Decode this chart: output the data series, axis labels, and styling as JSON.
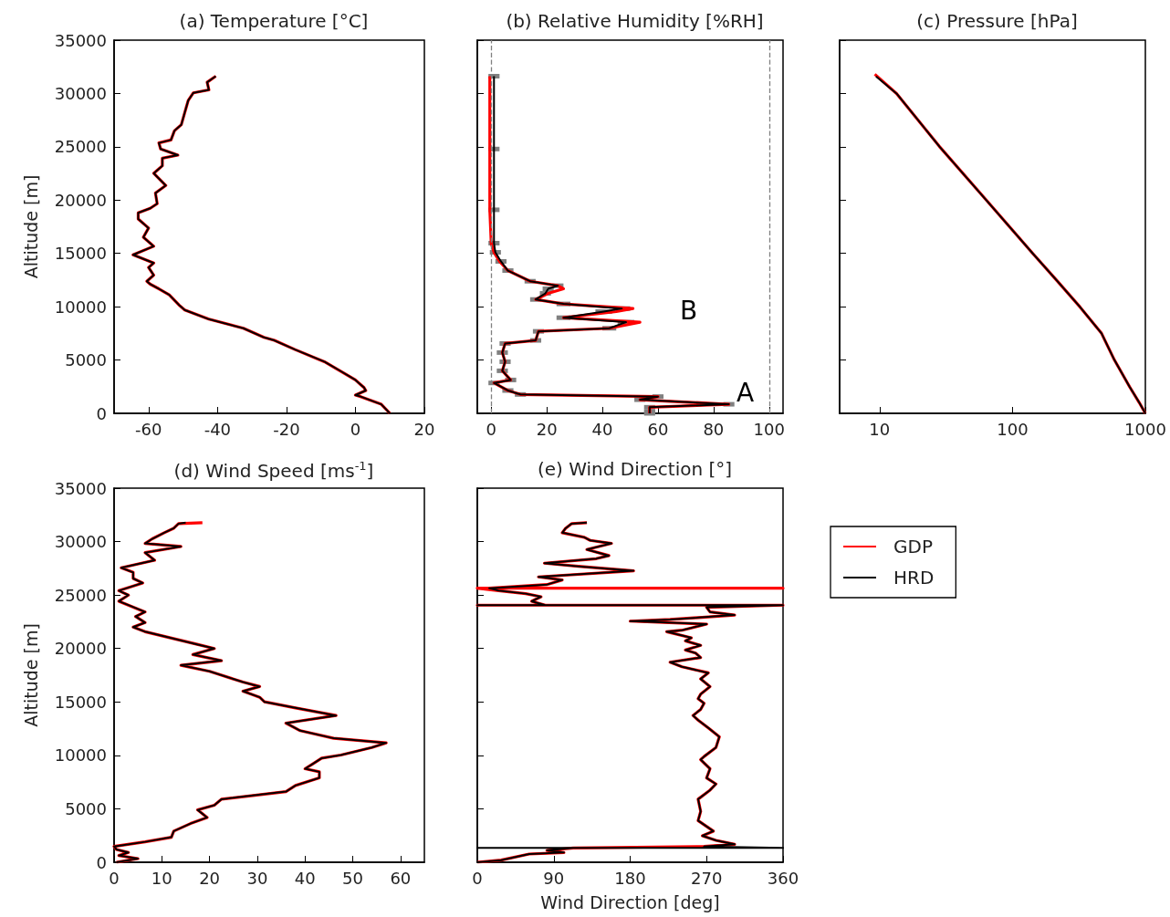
{
  "chart_data": [
    {
      "type": "line",
      "title": "(a) Temperature [°C]",
      "ylabel": "Altitude [m]",
      "xlim": [
        -70,
        20
      ],
      "xticks": [
        -60,
        -40,
        -20,
        0,
        20
      ],
      "ylim": [
        0,
        35000
      ],
      "yticks": [
        0,
        5000,
        10000,
        15000,
        20000,
        25000,
        30000,
        35000
      ],
      "marker": "none",
      "series": [
        {
          "color": "#ff0000",
          "x": [
            10,
            7.5,
            1.5,
            0,
            3,
            2.5,
            1.5,
            0,
            -4.5,
            -9,
            -17.5,
            -23.5,
            -26.5,
            -32.5,
            -42.5,
            -49.5,
            -51,
            -54,
            -57,
            -59.5,
            -60.5,
            -58.5,
            -60,
            -58.5,
            -64.5,
            -58.5,
            -61.5,
            -60,
            -63,
            -63,
            -59.5,
            -57.5,
            -58,
            -55,
            -58.5,
            -56,
            -56,
            -51.5,
            -56.5,
            -57,
            -53.5,
            -52.5,
            -50.5,
            -49.5,
            -49,
            -48.5,
            -47,
            -42.5,
            -43,
            -40.5
          ],
          "values": [
            0,
            850,
            1570,
            1710,
            2140,
            2420,
            2700,
            3130,
            4000,
            4840,
            5980,
            6840,
            7120,
            7980,
            8830,
            9690,
            10110,
            11110,
            11680,
            12110,
            12390,
            12960,
            13680,
            14100,
            14870,
            15670,
            16520,
            17380,
            18230,
            18800,
            19230,
            19660,
            20660,
            21370,
            22510,
            23220,
            23930,
            24220,
            24790,
            25360,
            25640,
            26500,
            27070,
            28210,
            28770,
            29340,
            30060,
            30340,
            31050,
            31620
          ]
        },
        {
          "color": "#000000",
          "x": [
            10,
            7.5,
            1.5,
            0,
            3,
            2.5,
            1.5,
            0,
            -4.5,
            -9,
            -17.5,
            -23.5,
            -26.5,
            -32.5,
            -42.5,
            -49.5,
            -51,
            -54,
            -57,
            -59.5,
            -60.5,
            -58.5,
            -60,
            -58.5,
            -64.5,
            -58.5,
            -61.5,
            -60,
            -63,
            -63,
            -59.5,
            -57.5,
            -58,
            -55,
            -58.5,
            -56,
            -56,
            -51.5,
            -56.5,
            -57,
            -53.5,
            -52.5,
            -50.5,
            -49.5,
            -49,
            -48.5,
            -47,
            -42.5,
            -43,
            -40.5
          ],
          "values": [
            0,
            850,
            1570,
            1710,
            2140,
            2420,
            2700,
            3130,
            4000,
            4840,
            5980,
            6840,
            7120,
            7980,
            8830,
            9690,
            10110,
            11110,
            11680,
            12110,
            12390,
            12960,
            13680,
            14100,
            14870,
            15670,
            16520,
            17380,
            18230,
            18800,
            19230,
            19660,
            20660,
            21370,
            22510,
            23220,
            23930,
            24220,
            24790,
            25360,
            25640,
            26500,
            27070,
            28210,
            28770,
            29340,
            30060,
            30340,
            31050,
            31620
          ]
        }
      ]
    },
    {
      "type": "line",
      "title": "(b) Relative Humidity [%RH]",
      "xlim": [
        -5,
        105
      ],
      "xticks": [
        0,
        20,
        40,
        60,
        80,
        100
      ],
      "ylim": [
        0,
        35000
      ],
      "yticks": [
        0,
        5000,
        10000,
        15000,
        20000,
        25000,
        30000,
        35000
      ],
      "tick_labels": "x",
      "marker": "none",
      "ref_lines": [
        {
          "axis": "x",
          "value": 0,
          "color": "#808080",
          "line_style": "dashed"
        },
        {
          "axis": "x",
          "value": 100,
          "color": "#808080",
          "line_style": "dashed"
        }
      ],
      "annotations": [
        "A",
        "B"
      ],
      "series": [
        {
          "color": "#ff0000",
          "x": [
            57,
            57,
            57,
            85.5,
            53.5,
            60,
            10.5,
            6,
            1,
            7,
            4,
            5,
            4,
            5,
            16,
            17,
            42.5,
            53.5,
            26,
            45,
            51,
            26,
            16,
            20.5,
            26,
            24,
            14,
            6,
            3,
            1,
            0,
            -0.5,
            -0.5,
            -0.5
          ],
          "values": [
            0,
            140,
            570,
            850,
            1280,
            1570,
            1770,
            2140,
            2850,
            3130,
            3990,
            4840,
            5700,
            6550,
            6840,
            7690,
            7980,
            8550,
            8970,
            9540,
            9830,
            10260,
            10680,
            11250,
            11680,
            11970,
            12390,
            13390,
            14250,
            15100,
            15960,
            19090,
            24790,
            31620
          ]
        },
        {
          "color": "#000000",
          "x": [
            57,
            57,
            57,
            85.5,
            53.5,
            60,
            10.5,
            6,
            1,
            7,
            4,
            5,
            4,
            5,
            16,
            17,
            42.5,
            48.5,
            26,
            40.5,
            47,
            26,
            16,
            19.5,
            20.5,
            24,
            14,
            6,
            3.5,
            1.5,
            1,
            1,
            1,
            1
          ],
          "values": [
            0,
            140,
            570,
            850,
            1280,
            1570,
            1770,
            2140,
            2850,
            3130,
            3990,
            4840,
            5700,
            6550,
            6840,
            7690,
            7980,
            8550,
            8970,
            9540,
            9830,
            10260,
            10680,
            11250,
            11680,
            11970,
            12390,
            13390,
            14250,
            15100,
            15960,
            19090,
            24790,
            31620
          ],
          "xerrors": [
            2,
            2,
            2,
            2,
            2,
            2,
            2,
            2,
            2,
            2,
            2,
            2,
            2,
            2,
            2,
            2,
            2.5,
            3,
            2.5,
            3,
            3,
            2.5,
            2,
            2,
            2,
            2,
            2,
            2,
            2,
            2,
            2,
            2,
            2,
            2
          ]
        }
      ]
    },
    {
      "type": "line",
      "title": "(c) Pressure [hPa]",
      "log": "x",
      "xlim": [
        5,
        1000
      ],
      "xticks": [
        10,
        100,
        1000
      ],
      "ylim": [
        0,
        35000
      ],
      "yticks": [
        0,
        5000,
        10000,
        15000,
        20000,
        25000,
        30000,
        35000
      ],
      "tick_labels": "x",
      "marker": "none",
      "series": [
        {
          "color": "#ff0000",
          "x": [
            1000,
            900,
            760,
            585,
            468,
            321,
            214,
            142,
            63.5,
            28.3,
            13.4,
            9.2
          ],
          "values": [
            0,
            1000,
            2500,
            5000,
            7500,
            10000,
            12500,
            15000,
            20000,
            25000,
            30000,
            31800
          ]
        },
        {
          "color": "#000000",
          "x": [
            1000,
            900,
            760,
            585,
            468,
            321,
            214,
            142,
            63.5,
            28.3,
            13.4,
            9.4
          ],
          "values": [
            0,
            1000,
            2500,
            5000,
            7500,
            10000,
            12500,
            15000,
            20000,
            25000,
            30000,
            31600
          ]
        }
      ]
    },
    {
      "type": "line",
      "title": "(d) Wind Speed [ms$^{-1}$]",
      "ylabel": "Altitude [m]",
      "xlim": [
        0,
        65
      ],
      "xticks": [
        0,
        10,
        20,
        30,
        40,
        50,
        60
      ],
      "ylim": [
        0,
        35000
      ],
      "yticks": [
        0,
        5000,
        10000,
        15000,
        20000,
        25000,
        30000,
        35000
      ],
      "marker": "none",
      "series": [
        {
          "color": "#ff0000",
          "x": [
            0.5,
            5,
            1,
            3,
            0.5,
            0,
            6.5,
            12,
            12.5,
            16,
            19.5,
            17.5,
            21,
            22.5,
            36,
            38,
            43,
            43,
            40,
            41.5,
            43.5,
            47.5,
            54,
            57,
            46,
            39,
            36,
            46.5,
            38,
            31.5,
            30.5,
            27,
            30.5,
            27,
            20,
            14,
            22.5,
            16.5,
            21,
            17,
            6.5,
            4,
            6.5,
            4.5,
            6.5,
            1,
            3,
            1,
            6,
            4,
            4,
            1.5,
            8.5,
            6.5,
            14,
            6.5,
            8,
            10.5,
            12.5,
            13.5,
            18.5
          ],
          "values": [
            0,
            340,
            630,
            910,
            1200,
            1480,
            1910,
            2340,
            2910,
            3620,
            4190,
            4900,
            5330,
            5900,
            6610,
            7180,
            7890,
            8460,
            8750,
            9170,
            9740,
            10030,
            10740,
            11170,
            11600,
            12310,
            13020,
            13730,
            14440,
            15010,
            15440,
            16010,
            16440,
            16860,
            17860,
            18430,
            18860,
            19430,
            20000,
            20430,
            21570,
            22000,
            22420,
            22990,
            23420,
            24420,
            24990,
            25410,
            26130,
            26550,
            27120,
            27550,
            28260,
            28970,
            29540,
            29830,
            30260,
            30830,
            31250,
            31680,
            31770
          ]
        },
        {
          "color": "#000000",
          "x": [
            0.5,
            5,
            1,
            3,
            0.5,
            0,
            6.5,
            12,
            12.5,
            16,
            19.5,
            17.5,
            21,
            22.5,
            36,
            38,
            43,
            43,
            40,
            41.5,
            43.5,
            47.5,
            54,
            57,
            46,
            39,
            36,
            46.5,
            38,
            31.5,
            30.5,
            27,
            30.5,
            27,
            20,
            14,
            22.5,
            16.5,
            21,
            17,
            6.5,
            4,
            6.5,
            4.5,
            6.5,
            1,
            3,
            1,
            6,
            4,
            4,
            1.5,
            8.5,
            6.5,
            14,
            6.5,
            8,
            10.5,
            12.5,
            13.5,
            15
          ],
          "values": [
            0,
            340,
            630,
            910,
            1200,
            1480,
            1910,
            2340,
            2910,
            3620,
            4190,
            4900,
            5330,
            5900,
            6610,
            7180,
            7890,
            8460,
            8750,
            9170,
            9740,
            10030,
            10740,
            11170,
            11600,
            12310,
            13020,
            13730,
            14440,
            15010,
            15440,
            16010,
            16440,
            16860,
            17860,
            18430,
            18860,
            19430,
            20000,
            20430,
            21570,
            22000,
            22420,
            22990,
            23420,
            24420,
            24990,
            25410,
            26130,
            26550,
            27120,
            27550,
            28260,
            28970,
            29540,
            29830,
            30260,
            30830,
            31250,
            31680,
            31770
          ]
        }
      ]
    },
    {
      "type": "line",
      "title": "(e) Wind Direction [°]",
      "xlabel": "Wind Direction [deg]",
      "xlim": [
        0,
        360
      ],
      "xticks": [
        0,
        90,
        180,
        270,
        360
      ],
      "ylim": [
        0,
        35000
      ],
      "yticks": [
        0,
        5000,
        10000,
        15000,
        20000,
        25000,
        30000,
        35000
      ],
      "tick_labels": "x",
      "marker": "none",
      "legend": "right",
      "series": [
        {
          "name": "GDP",
          "color": "#ff0000",
          "x": [
            0,
            28,
            61,
            102,
            82,
            113,
            267,
            303,
            281,
            265,
            278,
            260,
            263,
            260,
            274,
            281,
            270,
            274,
            263,
            267,
            281,
            285,
            274,
            260,
            254,
            263,
            267,
            260,
            263,
            274,
            263,
            272,
            241,
            227,
            263,
            257,
            245,
            263,
            245,
            252,
            223,
            241,
            270,
            180,
            227,
            303,
            274,
            270,
            360,
            0,
            80,
            64,
            75,
            57,
            25,
            0,
            360,
            14,
            82,
            100,
            72,
            184,
            119,
            79,
            140,
            155,
            129,
            158,
            133,
            126,
            100,
            104,
            111,
            129
          ],
          "values": [
            0,
            200,
            770,
            910,
            1110,
            1340,
            1480,
            1680,
            2050,
            2480,
            2910,
            3900,
            4760,
            5900,
            6750,
            7320,
            7890,
            8750,
            9600,
            9890,
            10740,
            11740,
            12450,
            13300,
            13730,
            14300,
            14870,
            15300,
            15730,
            16440,
            17150,
            17720,
            18290,
            18720,
            19150,
            19570,
            19860,
            20290,
            20710,
            21000,
            21570,
            21710,
            22280,
            22560,
            22710,
            23130,
            23420,
            23850,
            24050,
            24050,
            24050,
            24420,
            24840,
            25130,
            25410,
            25640,
            25640,
            25640,
            25980,
            26410,
            26700,
            27270,
            27690,
            27980,
            28400,
            28690,
            29260,
            29830,
            30110,
            30400,
            30830,
            31250,
            31680,
            31770
          ]
        },
        {
          "name": "HRD",
          "color": "#000000",
          "x": [
            0,
            28,
            61,
            102,
            82,
            113,
            0,
            360,
            267,
            303,
            281,
            265,
            278,
            260,
            263,
            260,
            274,
            281,
            270,
            274,
            263,
            267,
            281,
            285,
            274,
            260,
            254,
            263,
            267,
            260,
            263,
            274,
            263,
            272,
            241,
            227,
            263,
            257,
            245,
            263,
            245,
            252,
            223,
            241,
            270,
            180,
            227,
            303,
            274,
            270,
            360,
            0,
            80,
            64,
            75,
            57,
            25,
            14,
            82,
            100,
            72,
            184,
            119,
            79,
            140,
            155,
            129,
            158,
            133,
            126,
            100,
            104,
            111,
            129
          ],
          "values": [
            0,
            200,
            770,
            910,
            1110,
            1340,
            1340,
            1340,
            1480,
            1680,
            2050,
            2480,
            2910,
            3900,
            4760,
            5900,
            6750,
            7320,
            7890,
            8750,
            9600,
            9890,
            10740,
            11740,
            12450,
            13300,
            13730,
            14300,
            14870,
            15300,
            15730,
            16440,
            17150,
            17720,
            18290,
            18720,
            19150,
            19570,
            19860,
            20290,
            20710,
            21000,
            21570,
            21710,
            22280,
            22560,
            22710,
            23130,
            23420,
            23850,
            24050,
            24050,
            24050,
            24420,
            24840,
            25130,
            25410,
            25640,
            25980,
            26410,
            26700,
            27270,
            27690,
            27980,
            28400,
            28690,
            29260,
            29830,
            30110,
            30400,
            30830,
            31250,
            31680,
            31770
          ]
        }
      ]
    }
  ]
}
